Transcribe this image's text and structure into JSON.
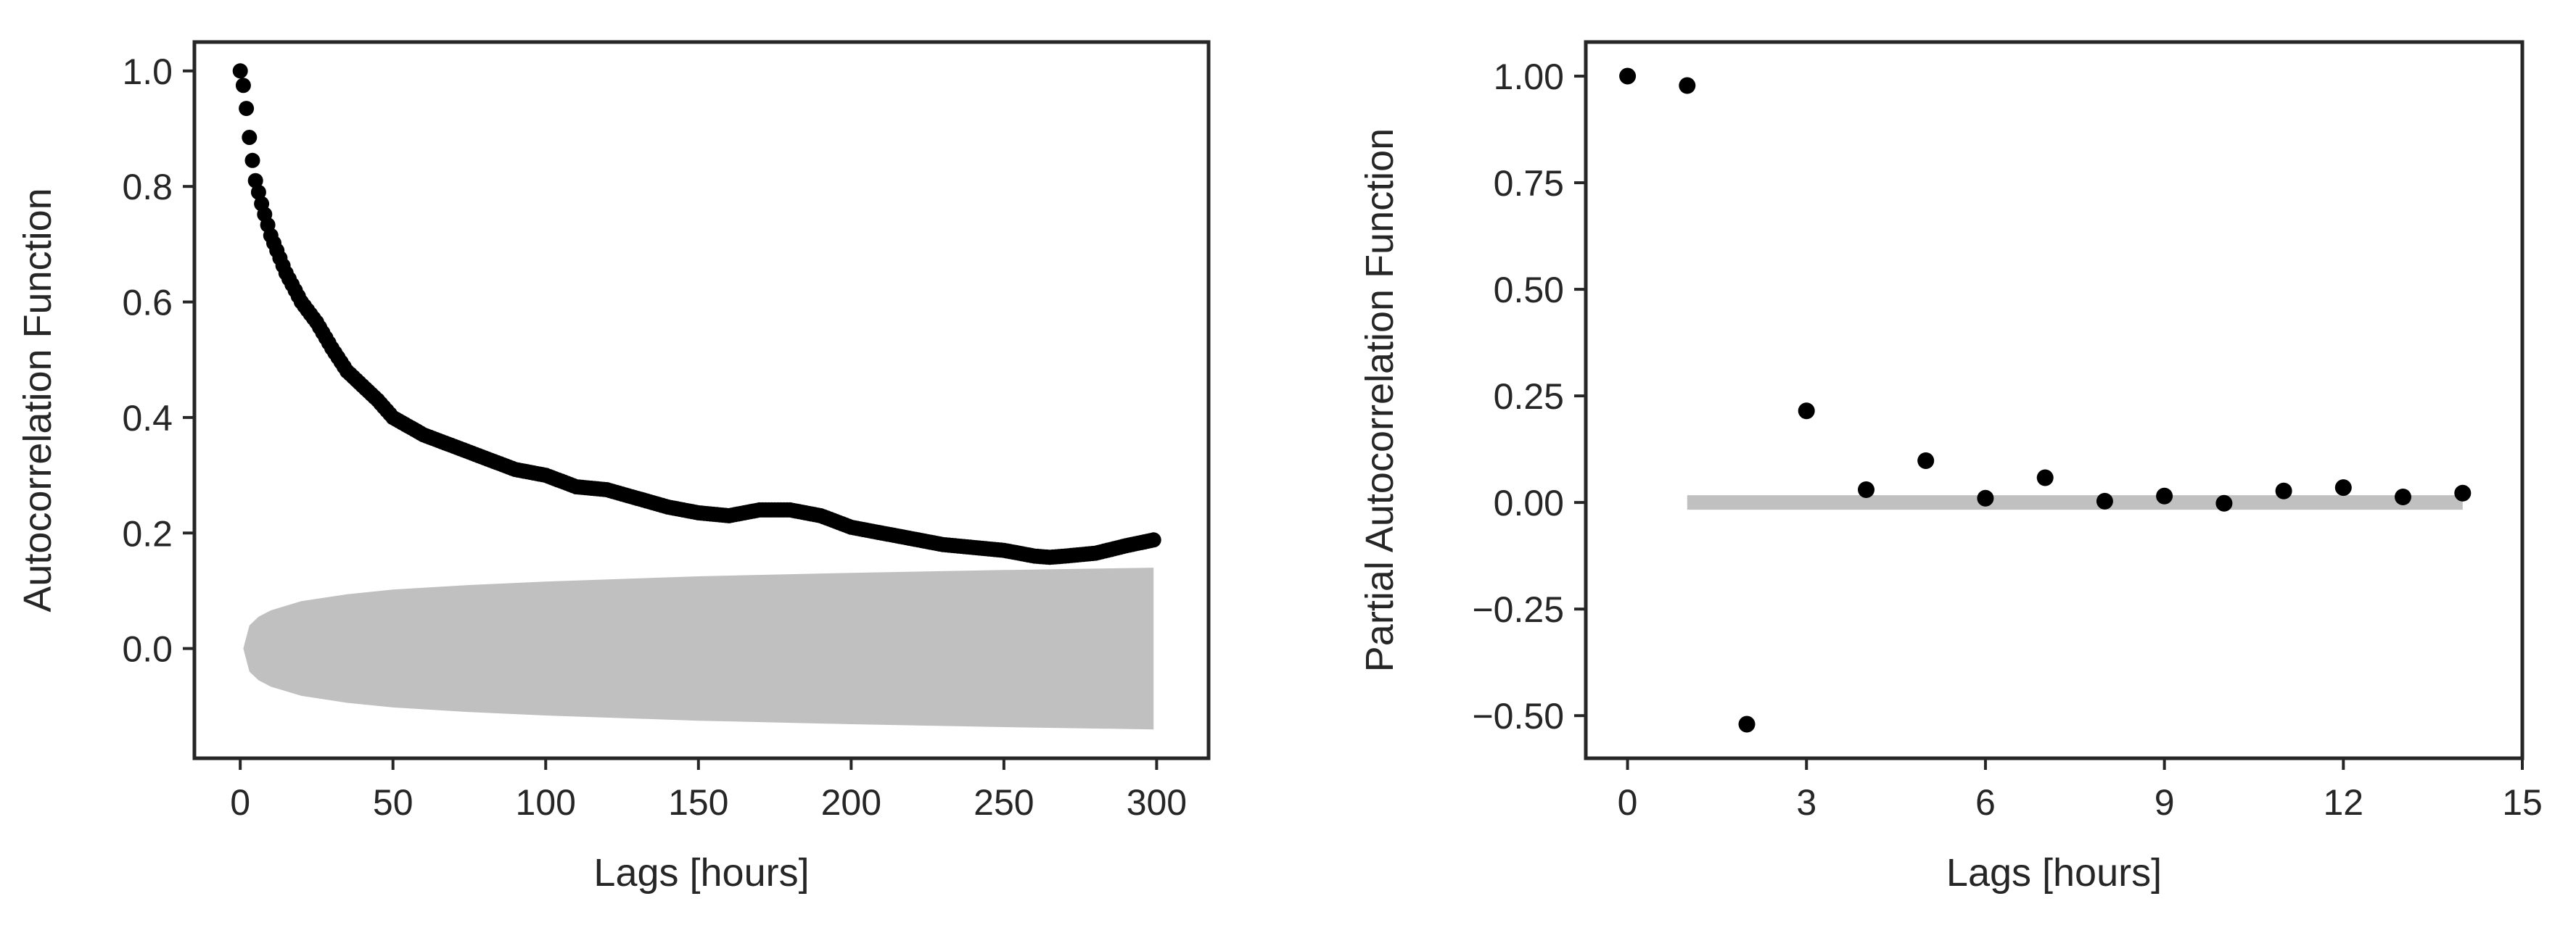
{
  "chart_data": [
    {
      "type": "scatter",
      "title": "",
      "xlabel": "Lags [hours]",
      "ylabel": "Autocorrelation Function",
      "xlim": [
        -15,
        317
      ],
      "ylim": [
        -0.19,
        1.05
      ],
      "xticks": [
        "0",
        "50",
        "100",
        "150",
        "200",
        "250",
        "300"
      ],
      "yticks": [
        "0.0",
        "0.2",
        "0.4",
        "0.6",
        "0.8",
        "1.0"
      ],
      "grid": false,
      "legend": "none",
      "marker_color": "#000000",
      "band_color": "#c0c0c0",
      "confidence_band": {
        "x": [
          1,
          3,
          6,
          10,
          20,
          35,
          50,
          75,
          100,
          150,
          200,
          250,
          299
        ],
        "upper": [
          0.0,
          0.04,
          0.055,
          0.066,
          0.082,
          0.094,
          0.102,
          0.11,
          0.116,
          0.125,
          0.131,
          0.136,
          0.14
        ],
        "lower": [
          0.0,
          -0.04,
          -0.055,
          -0.066,
          -0.082,
          -0.094,
          -0.102,
          -0.11,
          -0.116,
          -0.125,
          -0.131,
          -0.136,
          -0.14
        ]
      },
      "series": [
        {
          "knots_x": [
            0,
            1,
            2,
            3,
            4,
            5,
            7,
            10,
            15,
            20,
            25,
            30,
            35,
            40,
            45,
            50,
            60,
            70,
            80,
            90,
            100,
            110,
            120,
            130,
            140,
            150,
            160,
            170,
            180,
            190,
            200,
            210,
            220,
            230,
            240,
            250,
            255,
            260,
            265,
            270,
            280,
            290,
            299
          ],
          "knots_y": [
            1.0,
            0.975,
            0.935,
            0.885,
            0.845,
            0.81,
            0.77,
            0.715,
            0.65,
            0.6,
            0.565,
            0.52,
            0.48,
            0.455,
            0.43,
            0.4,
            0.37,
            0.35,
            0.33,
            0.31,
            0.3,
            0.28,
            0.275,
            0.26,
            0.245,
            0.235,
            0.23,
            0.24,
            0.24,
            0.23,
            0.21,
            0.2,
            0.19,
            0.18,
            0.175,
            0.17,
            0.165,
            0.16,
            0.158,
            0.16,
            0.165,
            0.178,
            0.188
          ]
        }
      ]
    },
    {
      "type": "scatter",
      "title": "",
      "xlabel": "Lags [hours]",
      "ylabel": "Partial Autocorrelation Function",
      "xlim": [
        -0.7,
        15
      ],
      "ylim": [
        -0.6,
        1.08
      ],
      "xticks": [
        "0",
        "3",
        "6",
        "9",
        "12",
        "15"
      ],
      "yticks": [
        "−0.50",
        "−0.25",
        "0.00",
        "0.25",
        "0.50",
        "0.75",
        "1.00"
      ],
      "grid": false,
      "legend": "none",
      "marker_color": "#000000",
      "band_color": "#c0c0c0",
      "confidence_band": {
        "x": [
          1,
          14
        ],
        "upper": [
          0.017,
          0.017
        ],
        "lower": [
          -0.017,
          -0.017
        ]
      },
      "series": [
        {
          "x": [
            0,
            1,
            2,
            3,
            4,
            5,
            6,
            7,
            8,
            9,
            10,
            11,
            12,
            13,
            14
          ],
          "y": [
            1.0,
            0.978,
            -0.52,
            0.215,
            0.03,
            0.098,
            0.01,
            0.058,
            0.003,
            0.015,
            -0.002,
            0.027,
            0.035,
            0.013,
            0.022
          ]
        }
      ]
    }
  ]
}
